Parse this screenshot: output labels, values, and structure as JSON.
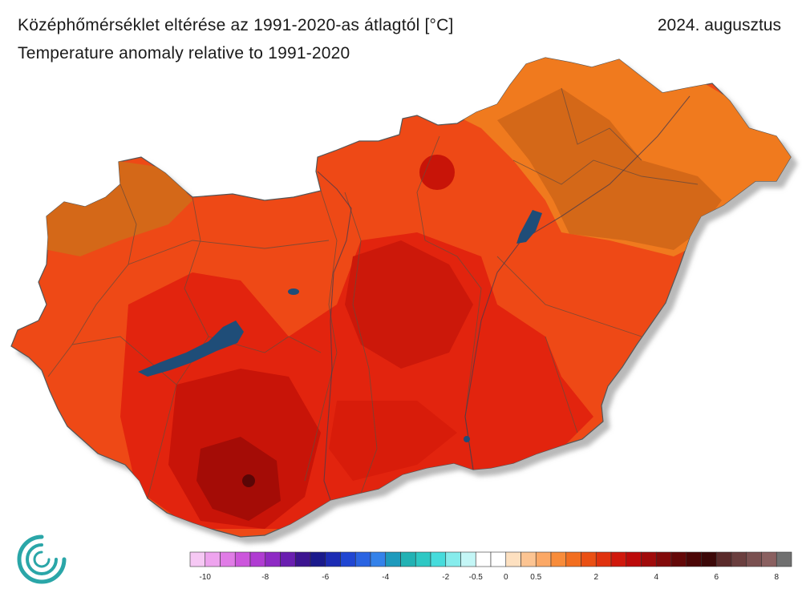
{
  "title_hu": "Középhőmérséklet eltérése az 1991-2020-as átlagtól [°C]",
  "title_en": "Temperature anomaly relative to 1991-2020",
  "date": "2024. augusztus",
  "legend": {
    "swatch_colors": [
      "#f6c8f4",
      "#eea4ee",
      "#e07ce6",
      "#cc56dc",
      "#b03cd2",
      "#8e2ac4",
      "#6a1eb0",
      "#3c1490",
      "#1a1a8c",
      "#1c2cb4",
      "#2046d2",
      "#2a64e2",
      "#3482ea",
      "#1e9abc",
      "#22b2b4",
      "#2ec8c4",
      "#46dcdc",
      "#86ecec",
      "#c4f6f6",
      "#ffffff",
      "#ffffff",
      "#fde0c0",
      "#fcc492",
      "#fba866",
      "#f88c3a",
      "#f26e20",
      "#ea5014",
      "#e0320e",
      "#d0180c",
      "#bc0a0a",
      "#a00a0a",
      "#820a0a",
      "#640808",
      "#4c0606",
      "#3c0808",
      "#5a2a2a",
      "#6a3e3e",
      "#7a5050",
      "#8a6060",
      "#707070"
    ],
    "tick_labels": [
      "-10",
      "-8",
      "-6",
      "-4",
      "-2",
      "-0.5",
      "0",
      "0.5",
      "2",
      "4",
      "6",
      "8"
    ]
  },
  "colors": {
    "base": "#ee4a18",
    "orange": "#f07a1e",
    "dark_orange": "#d46818",
    "hot": "#e2240e",
    "hotter": "#c81408",
    "hottest": "#a40c06",
    "lake": "#1f4d78",
    "border": "#555555",
    "logo": "#2aa6a8"
  }
}
